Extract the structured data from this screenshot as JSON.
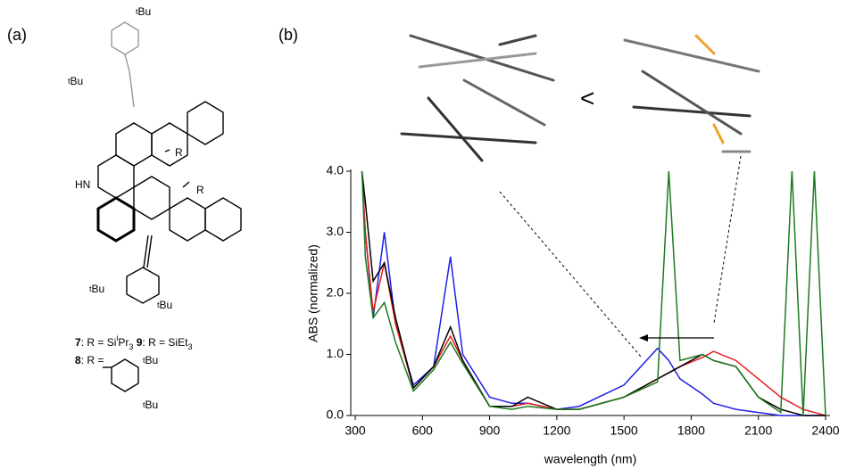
{
  "panels": {
    "a": "(a)",
    "b": "(b)"
  },
  "structure": {
    "tbu_prefix": "t",
    "tbu_group": "Bu",
    "hn": "HN",
    "r": "R",
    "caption_line_1": [
      {
        "text": "7",
        "style": "bold"
      },
      {
        "text": ": R = Si",
        "style": "normal"
      },
      {
        "text": "i",
        "style": "sup"
      },
      {
        "text": "Pr",
        "style": "normal"
      },
      {
        "text": "3",
        "style": "sub"
      },
      {
        "text": " 9",
        "style": "bold"
      },
      {
        "text": ": R = SiEt",
        "style": "normal"
      },
      {
        "text": "3",
        "style": "sub"
      }
    ],
    "caption_line_2": [
      {
        "text": "8",
        "style": "bold"
      },
      {
        "text": ": R =",
        "style": "normal"
      }
    ]
  },
  "comparison": "<",
  "chart_data": {
    "type": "line",
    "x_label": "wavelength (nm)",
    "y_label": "ABS (normalized)",
    "xlim": [
      280,
      2420
    ],
    "ylim": [
      0,
      4
    ],
    "xticks": [
      300,
      600,
      900,
      1200,
      1500,
      1800,
      2100,
      2400
    ],
    "yticks": [
      {
        "value": 0,
        "label": "0.0"
      },
      {
        "value": 1,
        "label": "1.0"
      },
      {
        "value": 2,
        "label": "2.0"
      },
      {
        "value": 3,
        "label": "3.0"
      },
      {
        "value": 4,
        "label": "4.0"
      }
    ],
    "x": [
      330,
      345,
      380,
      430,
      480,
      560,
      650,
      725,
      780,
      900,
      1000,
      1070,
      1200,
      1300,
      1500,
      1650,
      1700,
      1750,
      1850,
      1900,
      2000,
      2100,
      2200,
      2250,
      2300,
      2350,
      2400
    ],
    "series": [
      {
        "color": "#1f1fe6",
        "values": [
          4.0,
          3.0,
          1.6,
          3.0,
          1.5,
          0.5,
          0.8,
          2.6,
          1.0,
          0.3,
          0.2,
          0.2,
          0.1,
          0.15,
          0.5,
          1.1,
          0.9,
          0.6,
          0.35,
          0.2,
          0.1,
          0.05,
          0.0,
          0.0,
          0.0,
          0.0,
          0.0
        ]
      },
      {
        "color": "#e61e1e",
        "values": [
          4.0,
          3.0,
          1.7,
          2.5,
          1.5,
          0.45,
          0.8,
          1.3,
          0.9,
          0.15,
          0.15,
          0.2,
          0.1,
          0.1,
          0.3,
          0.6,
          0.7,
          0.8,
          0.95,
          1.05,
          0.9,
          0.6,
          0.3,
          0.2,
          0.1,
          0.05,
          0.0
        ]
      },
      {
        "color": "#000000",
        "values": [
          4.0,
          3.5,
          2.2,
          2.5,
          1.6,
          0.45,
          0.8,
          1.45,
          0.9,
          0.15,
          0.15,
          0.3,
          0.1,
          0.1,
          0.3,
          0.6,
          0.7,
          0.8,
          1.0,
          0.9,
          0.8,
          0.3,
          0.1,
          0.05,
          0.0,
          0.0,
          0.0
        ]
      },
      {
        "color": "#1e7a1e",
        "values": [
          4.0,
          2.6,
          1.6,
          1.85,
          1.2,
          0.4,
          0.75,
          1.2,
          0.85,
          0.15,
          0.1,
          0.15,
          0.1,
          0.1,
          0.3,
          0.55,
          4.0,
          0.9,
          1.0,
          0.9,
          0.8,
          0.3,
          0.05,
          4.0,
          0.0,
          4.0,
          0.0
        ]
      }
    ]
  }
}
